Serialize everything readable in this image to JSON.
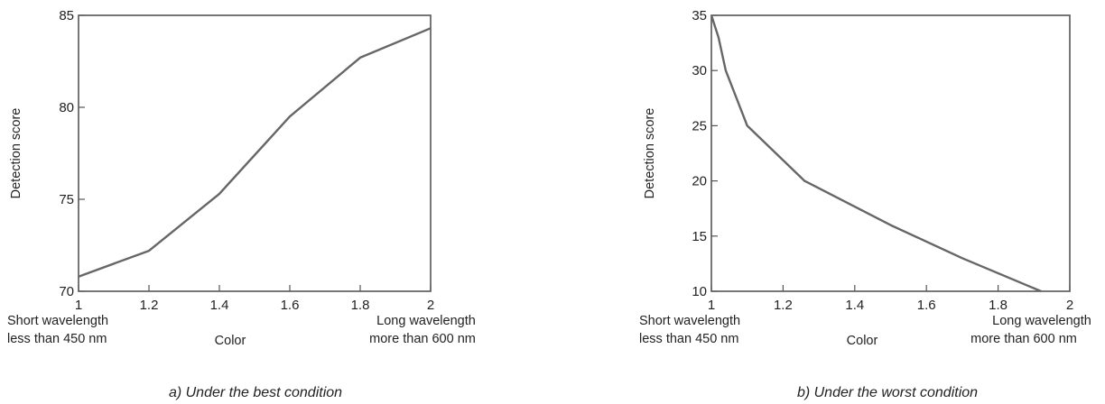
{
  "chart_data": [
    {
      "type": "line",
      "ylabel": "Detection score",
      "xlabel": "Color",
      "xlim": [
        1,
        2
      ],
      "ylim": [
        70,
        85
      ],
      "x_ticks": [
        "1",
        "1.2",
        "1.4",
        "1.6",
        "1.8",
        "2"
      ],
      "y_ticks": [
        "70",
        "75",
        "80",
        "85"
      ],
      "x_left_note": [
        "Short wavelength",
        "less than 450 nm"
      ],
      "x_right_note": [
        "Long wavelength",
        "more than 600 nm"
      ],
      "caption": "a) Under the best condition",
      "series": [
        {
          "x": [
            1.0,
            1.2,
            1.4,
            1.6,
            1.8,
            2.0
          ],
          "y": [
            70.8,
            72.2,
            75.3,
            79.5,
            82.7,
            84.3
          ]
        }
      ],
      "grid": false
    },
    {
      "type": "line",
      "ylabel": "Detection score",
      "xlabel": "Color",
      "xlim": [
        1,
        2
      ],
      "ylim": [
        10,
        35
      ],
      "x_ticks": [
        "1",
        "1.2",
        "1.4",
        "1.6",
        "1.8",
        "2"
      ],
      "y_ticks": [
        "10",
        "15",
        "20",
        "25",
        "30",
        "35"
      ],
      "x_left_note": [
        "Short wavelength",
        "less than 450 nm"
      ],
      "x_right_note": [
        "Long wavelength",
        "more than 600 nm"
      ],
      "caption": "b) Under the worst condition",
      "series": [
        {
          "x": [
            1.0,
            1.02,
            1.04,
            1.1,
            1.26,
            1.5,
            1.7,
            1.92
          ],
          "y": [
            35.0,
            33.0,
            30.0,
            25.0,
            20.0,
            16.0,
            13.0,
            10.0
          ]
        }
      ],
      "grid": false
    }
  ]
}
